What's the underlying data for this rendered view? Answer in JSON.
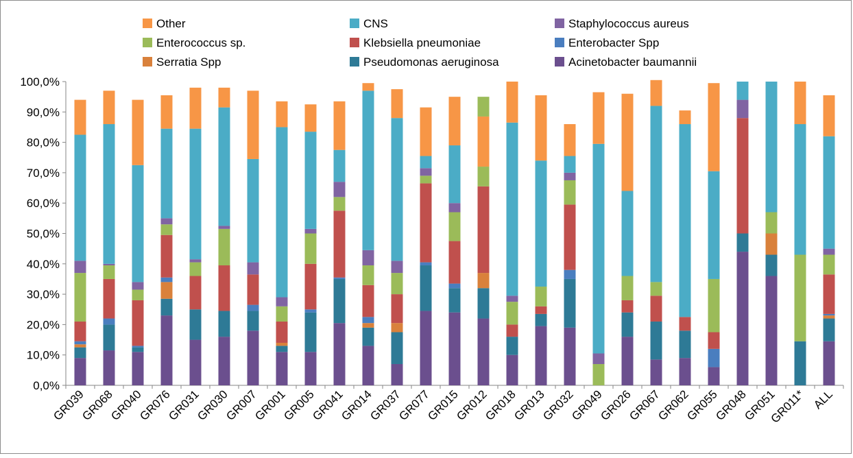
{
  "chart_data": {
    "type": "bar",
    "stacked": true,
    "percent": true,
    "title": "",
    "xlabel": "",
    "ylabel": "",
    "ylim": [
      0,
      100
    ],
    "yticks": [
      "0,0%",
      "10,0%",
      "20,0%",
      "30,0%",
      "40,0%",
      "50,0%",
      "60,0%",
      "70,0%",
      "80,0%",
      "90,0%",
      "100,0%"
    ],
    "grid": false,
    "legend_position": "top",
    "categories": [
      "GR039",
      "GR068",
      "GR040",
      "GR076",
      "GR031",
      "GR030",
      "GR007",
      "GR001",
      "GR005",
      "GR041",
      "GR014",
      "GR037",
      "GR077",
      "GR015",
      "GR012",
      "GR018",
      "GR013",
      "GR032",
      "GR049",
      "GR026",
      "GR067",
      "GR062",
      "GR055",
      "GR048",
      "GR051",
      "GR011*",
      "ALL"
    ],
    "series": [
      {
        "name": "Acinetobacter baumannii",
        "color": "#6b4f8e",
        "values": [
          9.0,
          11.5,
          11.0,
          23.0,
          15.0,
          16.0,
          18.0,
          11.0,
          11.0,
          20.5,
          13.0,
          7.0,
          24.5,
          24.0,
          22.0,
          10.0,
          19.5,
          19.0,
          0.0,
          16.0,
          8.5,
          9.0,
          6.0,
          44.0,
          36.0,
          0.0,
          14.5
        ]
      },
      {
        "name": "Pseudomonas aeruginosa",
        "color": "#2e7a96",
        "values": [
          3.5,
          8.5,
          1.5,
          5.5,
          10.0,
          8.5,
          6.5,
          2.0,
          13.0,
          14.5,
          6.0,
          10.5,
          15.0,
          8.0,
          10.0,
          6.0,
          4.0,
          16.0,
          0.0,
          8.0,
          12.5,
          9.0,
          0.0,
          6.0,
          7.0,
          14.5,
          7.5
        ]
      },
      {
        "name": "Serratia Spp",
        "color": "#d9813b",
        "values": [
          1.0,
          0.0,
          0.0,
          5.5,
          0.0,
          0.0,
          0.0,
          1.0,
          0.0,
          0.0,
          1.5,
          3.0,
          0.0,
          0.0,
          5.0,
          0.0,
          0.0,
          0.0,
          0.0,
          0.0,
          0.0,
          0.0,
          0.0,
          0.0,
          7.0,
          0.0,
          1.0
        ]
      },
      {
        "name": "Enterobacter Spp",
        "color": "#4a7ebf",
        "values": [
          1.0,
          2.0,
          0.5,
          1.5,
          0.0,
          0.0,
          2.0,
          0.0,
          1.0,
          0.5,
          2.0,
          0.0,
          1.0,
          1.5,
          0.0,
          0.0,
          0.0,
          3.0,
          0.0,
          0.0,
          0.0,
          0.0,
          6.0,
          0.0,
          0.0,
          0.0,
          0.5
        ]
      },
      {
        "name": "Klebsiella pneumoniae",
        "color": "#c0504d",
        "values": [
          6.5,
          13.0,
          15.0,
          14.0,
          11.0,
          15.0,
          10.0,
          7.0,
          15.0,
          22.0,
          10.5,
          9.5,
          26.0,
          14.0,
          28.5,
          4.0,
          2.5,
          21.5,
          0.0,
          4.0,
          8.5,
          4.5,
          5.5,
          38.0,
          0.0,
          0.0,
          13.0
        ]
      },
      {
        "name": "Enterococcus sp.",
        "color": "#9bbb59",
        "values": [
          16.0,
          4.5,
          3.5,
          3.5,
          4.5,
          12.0,
          0.0,
          5.0,
          10.0,
          4.5,
          6.5,
          7.0,
          2.5,
          9.5,
          6.5,
          7.5,
          6.5,
          8.0,
          7.0,
          8.0,
          4.5,
          0.0,
          17.5,
          0.0,
          7.0,
          28.5,
          6.5
        ]
      },
      {
        "name": "Staphylococcus aureus",
        "color": "#8064a2",
        "values": [
          4.0,
          0.5,
          2.5,
          2.0,
          1.0,
          1.0,
          4.0,
          3.0,
          1.5,
          5.0,
          5.0,
          4.0,
          2.5,
          3.0,
          0.0,
          2.0,
          0.0,
          2.5,
          3.5,
          0.0,
          0.0,
          0.0,
          0.0,
          6.0,
          0.0,
          0.0,
          2.0
        ]
      },
      {
        "name": "CNS",
        "color": "#4bacc6",
        "values": [
          41.5,
          46.0,
          38.5,
          29.5,
          43.0,
          39.0,
          34.0,
          56.0,
          32.0,
          10.5,
          52.5,
          47.0,
          4.0,
          19.0,
          0.0,
          57.0,
          41.5,
          5.5,
          69.0,
          28.0,
          58.0,
          63.5,
          35.5,
          6.0,
          43.0,
          43.0,
          37.0
        ]
      },
      {
        "name": "Other",
        "color": "#f79646",
        "values": [
          11.5,
          11.0,
          21.5,
          11.0,
          13.5,
          6.5,
          22.5,
          8.5,
          9.0,
          16.0,
          2.5,
          9.5,
          16.0,
          16.0,
          16.5,
          13.5,
          21.5,
          10.5,
          17.0,
          32.0,
          8.5,
          4.5,
          29.0,
          0.0,
          0.0,
          14.0,
          13.5
        ]
      },
      {
        "name": "Enterococcus sp.",
        "color": "#9bbb59",
        "values": [
          0.0,
          0.0,
          0.0,
          0.0,
          0.0,
          0.0,
          0.0,
          0.0,
          0.0,
          0.0,
          0.0,
          0.0,
          0.0,
          0.0,
          6.5,
          0.0,
          0.0,
          0.0,
          0.0,
          0.0,
          0.0,
          0.0,
          0.0,
          0.0,
          0.0,
          0.0,
          0.0
        ]
      }
    ],
    "legend": [
      {
        "name": "Other",
        "color": "#f79646"
      },
      {
        "name": "CNS",
        "color": "#4bacc6"
      },
      {
        "name": "Staphylococcus aureus",
        "color": "#8064a2"
      },
      {
        "name": "Enterococcus sp.",
        "color": "#9bbb59"
      },
      {
        "name": "Klebsiella pneumoniae",
        "color": "#c0504d"
      },
      {
        "name": "Enterobacter Spp",
        "color": "#4a7ebf"
      },
      {
        "name": "Serratia Spp",
        "color": "#d9813b"
      },
      {
        "name": "Pseudomonas aeruginosa",
        "color": "#2e7a96"
      },
      {
        "name": "Acinetobacter baumannii",
        "color": "#6b4f8e"
      }
    ]
  }
}
